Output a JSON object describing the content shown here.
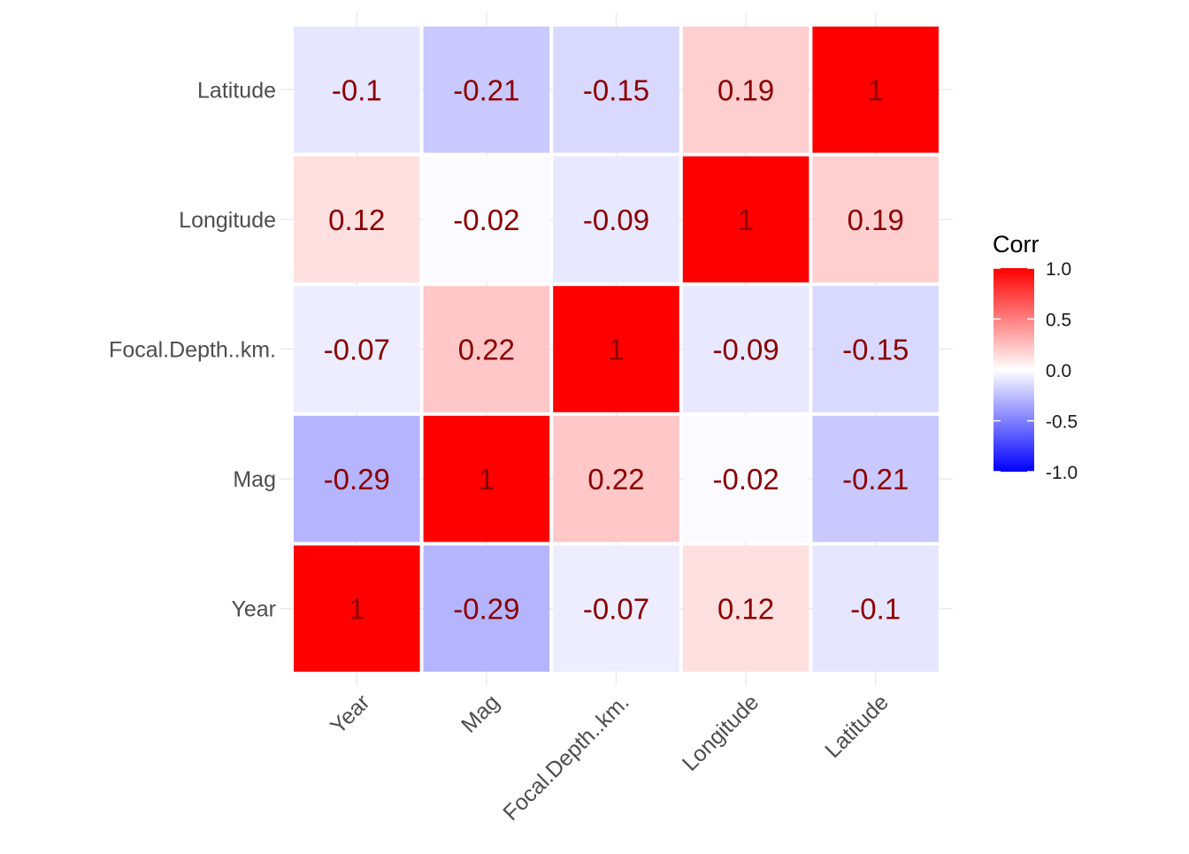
{
  "chart_data": {
    "type": "heatmap",
    "variables": [
      "Year",
      "Mag",
      "Focal.Depth..km.",
      "Longitude",
      "Latitude"
    ],
    "x": [
      "Year",
      "Mag",
      "Focal.Depth..km.",
      "Longitude",
      "Latitude"
    ],
    "y": [
      "Year",
      "Mag",
      "Focal.Depth..km.",
      "Longitude",
      "Latitude"
    ],
    "values": [
      [
        1,
        -0.29,
        -0.07,
        0.12,
        -0.1
      ],
      [
        -0.29,
        1,
        0.22,
        -0.02,
        -0.21
      ],
      [
        -0.07,
        0.22,
        1,
        -0.09,
        -0.15
      ],
      [
        0.12,
        -0.02,
        -0.09,
        1,
        0.19
      ],
      [
        -0.1,
        -0.21,
        -0.15,
        0.19,
        1
      ]
    ],
    "legend": {
      "title": "Corr",
      "limits": [
        -1,
        1
      ],
      "ticks": [
        "1.0",
        "0.5",
        "0.0",
        "-0.5",
        "-1.0"
      ],
      "placement": "right"
    },
    "colors": {
      "low": "#0000ff",
      "mid": "#ffffff",
      "high": "#ff0000",
      "cell_text": "#8b0000",
      "tick_text": "#4d4d4d",
      "grid": "#ebebeb"
    },
    "grid": true
  }
}
